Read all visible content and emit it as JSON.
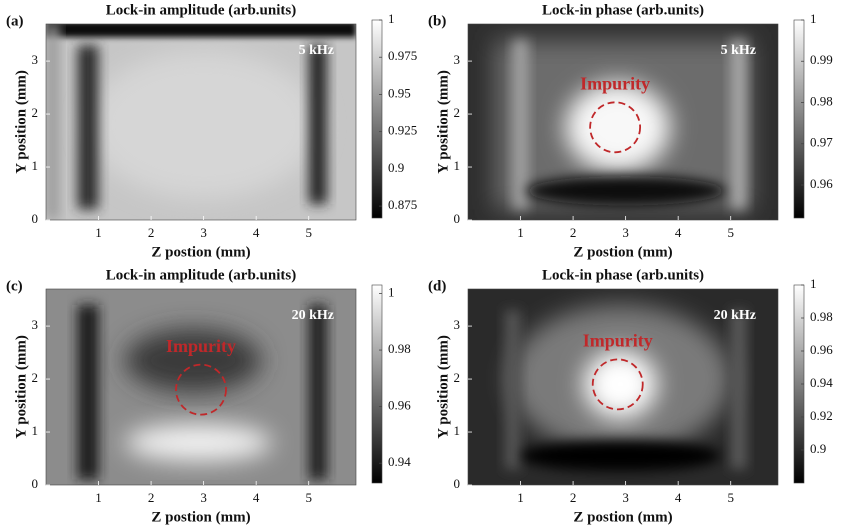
{
  "chart_data": [
    {
      "type": "heatmap",
      "label": "(a)",
      "title": "Lock-in amplitude (arb.units)",
      "annotation": "5 kHz",
      "xlabel": "Z postion (mm)",
      "ylabel": "Y position (mm)",
      "xlim": [
        0,
        5.9
      ],
      "ylim": [
        0,
        3.7
      ],
      "xticks": [
        1,
        2,
        3,
        4,
        5
      ],
      "yticks": [
        0,
        1,
        2,
        3
      ],
      "colormap": "gray",
      "clim": [
        0.867,
        1
      ],
      "cticks": [
        0.875,
        0.9,
        0.925,
        0.95,
        0.975,
        1
      ]
    },
    {
      "type": "heatmap",
      "label": "(b)",
      "title": "Lock-in phase (arb.units)",
      "annotation": "5 kHz",
      "impurity": "Impurity",
      "impurity_color": "#c0282a",
      "xlabel": "Z postion (mm)",
      "ylabel": "Y position (mm)",
      "xlim": [
        0,
        5.9
      ],
      "ylim": [
        0,
        3.7
      ],
      "xticks": [
        1,
        2,
        3,
        4,
        5
      ],
      "yticks": [
        0,
        1,
        2,
        3
      ],
      "colormap": "gray",
      "clim": [
        0.952,
        1
      ],
      "cticks": [
        0.96,
        0.97,
        0.98,
        0.99,
        1
      ]
    },
    {
      "type": "heatmap",
      "label": "(c)",
      "title": "Lock-in amplitude (arb.units)",
      "annotation": "20 kHz",
      "impurity": "Impurity",
      "impurity_color": "#c0282a",
      "xlabel": "Z postion (mm)",
      "ylabel": "Y position (mm)",
      "xlim": [
        0,
        5.9
      ],
      "ylim": [
        0,
        3.7
      ],
      "xticks": [
        1,
        2,
        3,
        4,
        5
      ],
      "yticks": [
        0,
        1,
        2,
        3
      ],
      "colormap": "gray",
      "clim": [
        0.933,
        1.003
      ],
      "cticks": [
        0.94,
        0.96,
        0.98,
        1
      ]
    },
    {
      "type": "heatmap",
      "label": "(d)",
      "title": "Lock-in phase (arb.units)",
      "annotation": "20 kHz",
      "impurity": "Impurity",
      "impurity_color": "#c0282a",
      "xlabel": "Z postion (mm)",
      "ylabel": "Y position (mm)",
      "xlim": [
        0,
        5.9
      ],
      "ylim": [
        0,
        3.7
      ],
      "xticks": [
        1,
        2,
        3,
        4,
        5
      ],
      "yticks": [
        0,
        1,
        2,
        3
      ],
      "colormap": "gray",
      "clim": [
        0.88,
        1
      ],
      "cticks": [
        0.9,
        0.92,
        0.94,
        0.96,
        0.98,
        1
      ]
    }
  ]
}
